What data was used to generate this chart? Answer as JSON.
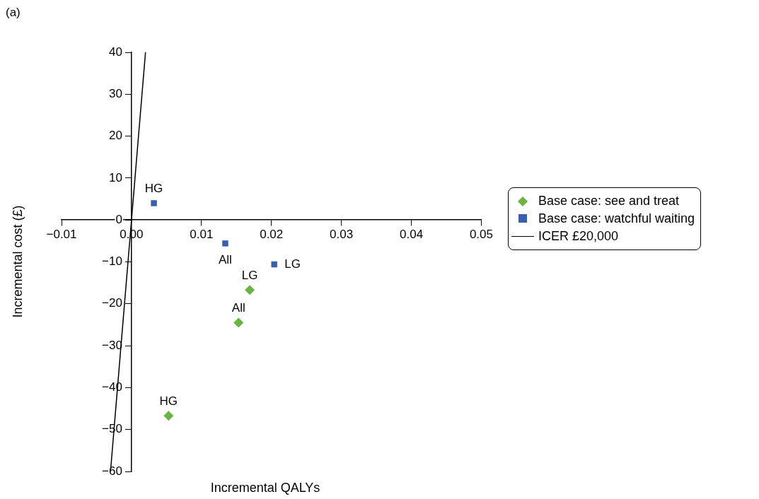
{
  "chart_data": {
    "type": "scatter",
    "title": "(a)",
    "xlabel": "Incremental QALYs",
    "ylabel": "Incremental cost (£)",
    "xlim": [
      -0.01,
      0.05
    ],
    "xticks": [
      {
        "value": -0.01,
        "label": "−0.01"
      },
      {
        "value": 0,
        "label": "0.00"
      },
      0.01,
      0.02,
      0.03,
      0.04,
      0.05
    ],
    "ylim": [
      -60,
      40
    ],
    "yticks": [
      {
        "value": -60,
        "label": "−60"
      },
      {
        "value": -50,
        "label": "−50"
      },
      {
        "value": -40,
        "label": "−40"
      },
      {
        "value": -30,
        "label": "−30"
      },
      {
        "value": -20,
        "label": "−20"
      },
      {
        "value": -10,
        "label": "−10"
      },
      0,
      10,
      20,
      30,
      40
    ],
    "grid": false,
    "legend": "right",
    "series": [
      {
        "name": "Base case: see and treat",
        "marker": "diamond",
        "color": "#6ab344",
        "x": [
          0.0169,
          0.0153,
          0.0053
        ],
        "values": [
          -16.7,
          -24.5,
          -46.7
        ]
      },
      {
        "name": "Base case: watchful waiting",
        "marker": "square",
        "color": "#3a5fad",
        "x": [
          0.0032,
          0.0134,
          0.0204
        ],
        "values": [
          4.0,
          -5.6,
          -10.6
        ]
      },
      {
        "name": "ICER £20,000",
        "type": "line",
        "color": "#000000",
        "x": [
          -0.003,
          0.002
        ],
        "values": [
          -60,
          40
        ]
      }
    ],
    "annotations": [
      {
        "text": "LG",
        "x": 0.0169,
        "y": -16.7
      },
      {
        "text": "All",
        "x": 0.0153,
        "y": -24.5
      },
      {
        "text": "HG",
        "x": 0.0053,
        "y": -46.7
      },
      {
        "text": "HG",
        "x": 0.0032,
        "y": 4.0
      },
      {
        "text": "All",
        "x": 0.0134,
        "y": -5.6
      },
      {
        "text": "LG",
        "x": 0.0204,
        "y": -10.6
      }
    ]
  }
}
